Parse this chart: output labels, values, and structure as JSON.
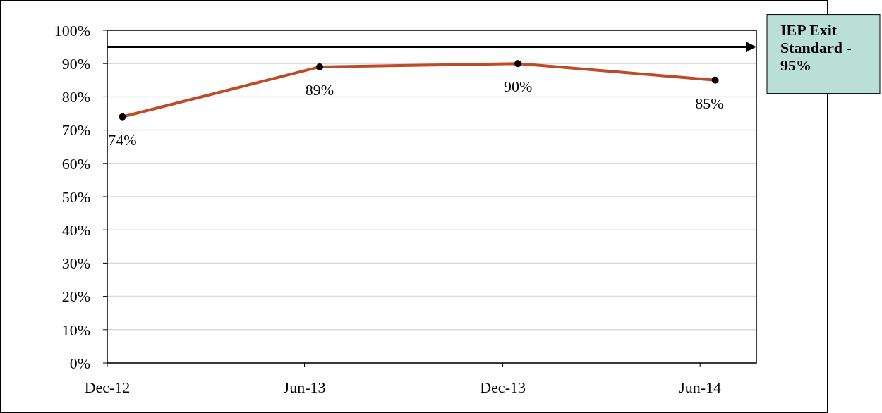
{
  "chart_data": {
    "type": "line",
    "x": [
      "2012-12-15",
      "2013-06-15",
      "2013-12-15",
      "2014-06-15"
    ],
    "series": [
      {
        "color": "#bf4a26",
        "values": [
          74,
          89,
          90,
          85
        ]
      }
    ],
    "marker": "circle",
    "value_labels": [
      "74%",
      "89%",
      "90%",
      "85%"
    ],
    "xlim": [
      "2012-12-01",
      "2014-07-23"
    ],
    "xticks": [
      {
        "value": "2012-12-01",
        "label": "Dec-12"
      },
      {
        "value": "2013-06-01",
        "label": "Jun-13"
      },
      {
        "value": "2013-12-01",
        "label": "Dec-13"
      },
      {
        "value": "2014-06-01",
        "label": "Jun-14"
      }
    ],
    "ylim": [
      0,
      100
    ],
    "yticks": [
      {
        "value": 0,
        "label": "0%"
      },
      {
        "value": 10,
        "label": "10%"
      },
      {
        "value": 20,
        "label": "20%"
      },
      {
        "value": 30,
        "label": "30%"
      },
      {
        "value": 40,
        "label": "40%"
      },
      {
        "value": 50,
        "label": "50%"
      },
      {
        "value": 60,
        "label": "60%"
      },
      {
        "value": 70,
        "label": "70%"
      },
      {
        "value": 80,
        "label": "80%"
      },
      {
        "value": 90,
        "label": "90%"
      },
      {
        "value": 100,
        "label": "100%"
      }
    ],
    "grid": "y",
    "ref_lines": [
      {
        "axis": "y",
        "value": 95,
        "label": "IEP Exit Standard - 95%",
        "color": "#000000"
      }
    ]
  }
}
